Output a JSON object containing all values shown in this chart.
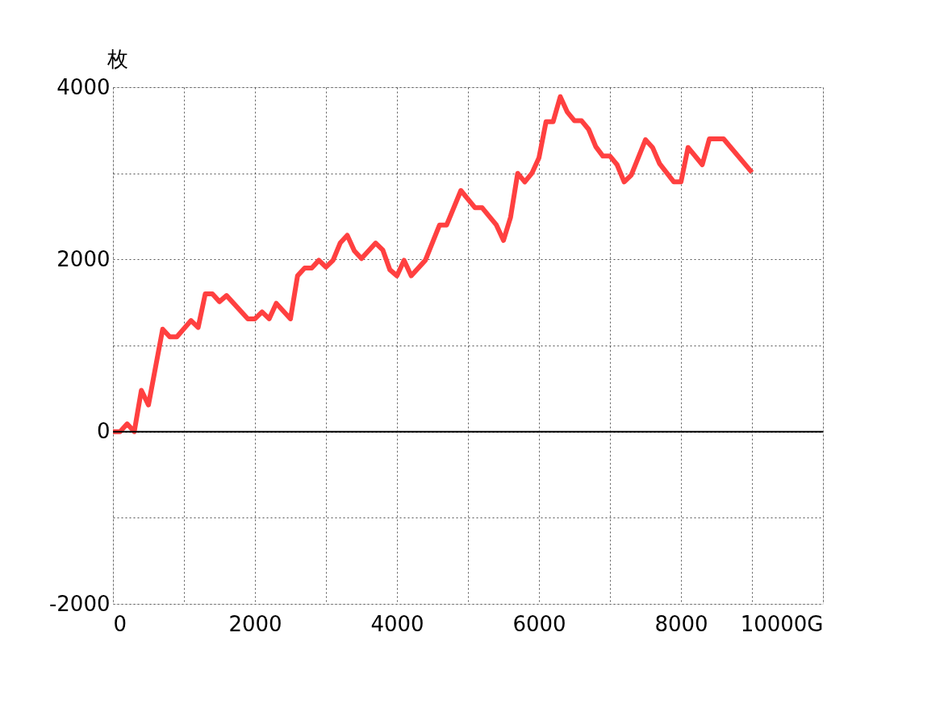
{
  "chart_data": {
    "type": "line",
    "ylabel": "枚",
    "x": [
      0,
      100,
      200,
      300,
      400,
      500,
      700,
      800,
      900,
      1100,
      1200,
      1300,
      1400,
      1500,
      1600,
      1900,
      2000,
      2100,
      2200,
      2300,
      2500,
      2600,
      2700,
      2800,
      2900,
      3000,
      3100,
      3200,
      3300,
      3400,
      3500,
      3700,
      3800,
      3900,
      4000,
      4100,
      4200,
      4400,
      4600,
      4700,
      4900,
      5100,
      5200,
      5400,
      5500,
      5600,
      5700,
      5800,
      5900,
      6000,
      6100,
      6200,
      6300,
      6400,
      6500,
      6600,
      6700,
      6800,
      6900,
      7000,
      7100,
      7200,
      7300,
      7500,
      7600,
      7700,
      7900,
      8000,
      8100,
      8300,
      8400,
      8600,
      9000
    ],
    "series": [
      {
        "color": "#ff4040",
        "values": [
          0,
          0,
          90,
          0,
          480,
          310,
          1190,
          1100,
          1100,
          1290,
          1210,
          1600,
          1600,
          1510,
          1580,
          1310,
          1310,
          1390,
          1310,
          1490,
          1310,
          1810,
          1900,
          1900,
          1990,
          1910,
          1990,
          2190,
          2280,
          2100,
          2010,
          2190,
          2110,
          1880,
          1810,
          1990,
          1810,
          1990,
          2400,
          2400,
          2800,
          2600,
          2600,
          2400,
          2220,
          2490,
          3000,
          2900,
          3000,
          3180,
          3600,
          3600,
          3890,
          3710,
          3610,
          3610,
          3510,
          3310,
          3200,
          3200,
          3100,
          2900,
          2980,
          3390,
          3300,
          3110,
          2900,
          2900,
          3300,
          3100,
          3400,
          3400,
          3010
        ]
      }
    ],
    "xlim": [
      0,
      10000
    ],
    "xticks": [
      0,
      {
        "value": 1000,
        "label": null
      },
      2000,
      {
        "value": 3000,
        "label": null
      },
      4000,
      {
        "value": 5000,
        "label": null
      },
      6000,
      {
        "value": 7000,
        "label": null
      },
      8000,
      {
        "value": 9000,
        "label": null
      },
      {
        "value": 10000,
        "label": "10000G"
      }
    ],
    "ylim": [
      -2000,
      4000
    ],
    "yticks": [
      -2000,
      {
        "value": -1000,
        "label": null
      },
      0,
      {
        "value": 1000,
        "label": null
      },
      2000,
      {
        "value": 3000,
        "label": null
      },
      4000
    ],
    "ref_lines": [
      {
        "axis": "y",
        "value": 0,
        "color": "#000000",
        "line_style": "solid"
      }
    ],
    "grid": true,
    "marker": "none",
    "line_style": "solid"
  }
}
